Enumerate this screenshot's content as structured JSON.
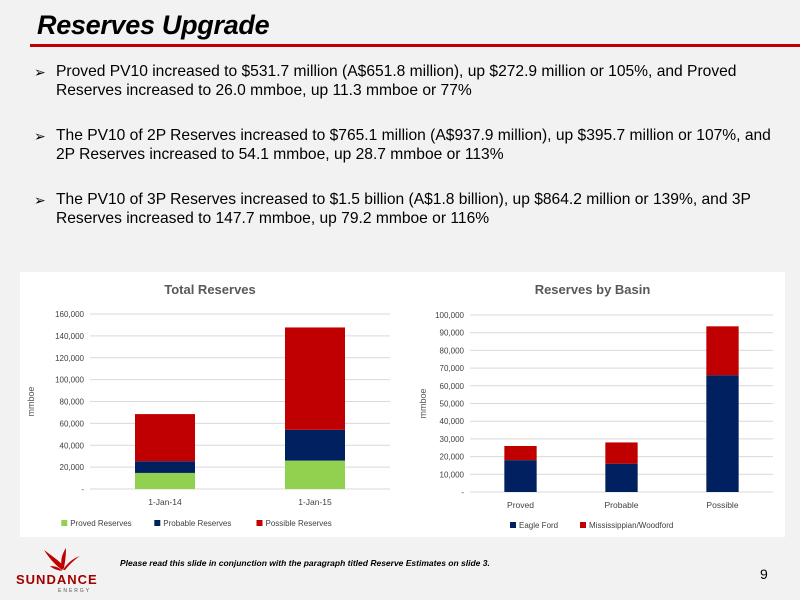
{
  "slide": {
    "title": "Reserves Upgrade",
    "bullet_marker": "➢",
    "bullets": [
      "Proved PV10 increased to $531.7 million (A$651.8 million), up $272.9 million or 105%, and Proved Reserves increased to 26.0 mmboe, up 11.3 mmboe or 77%",
      "The PV10 of 2P Reserves increased to $765.1 million (A$937.9 million), up $395.7 million or 107%, and 2P Reserves increased to 54.1 mmboe, up 28.7 mmboe or 113%",
      "The PV10 of 3P Reserves increased to $1.5 billion (A$1.8 billion), up $864.2 million or 139%, and 3P Reserves increased to 147.7 mmboe, up 79.2 mmboe or 116%"
    ],
    "footnote": "Please read this slide in conjunction with the paragraph titled Reserve Estimates on slide 3.",
    "page_number": "9",
    "logo": {
      "name": "SUNDANCE",
      "sub": "ENERGY"
    }
  },
  "chart_data": [
    {
      "type": "bar",
      "stacked": true,
      "title": "Total Reserves",
      "ylabel": "mmboe",
      "xlabel": "",
      "categories": [
        "1-Jan-14",
        "1-Jan-15"
      ],
      "ylim": [
        0,
        160000
      ],
      "yticks": [
        0,
        20000,
        40000,
        60000,
        80000,
        100000,
        120000,
        140000,
        160000
      ],
      "ytick_labels": [
        "-",
        "20,000",
        "40,000",
        "60,000",
        "80,000",
        "100,000",
        "120,000",
        "140,000",
        "160,000"
      ],
      "grid": true,
      "legend": "bottom",
      "series": [
        {
          "name": "Proved Reserves",
          "color": "#92d050",
          "values": [
            14700,
            26000
          ]
        },
        {
          "name": "Probable Reserves",
          "color": "#002060",
          "values": [
            10700,
            28100
          ]
        },
        {
          "name": "Possible Reserves",
          "color": "#c00000",
          "values": [
            43100,
            93600
          ]
        }
      ]
    },
    {
      "type": "bar",
      "stacked": true,
      "title": "Reserves by Basin",
      "ylabel": "mmboe",
      "xlabel": "",
      "categories": [
        "Proved",
        "Probable",
        "Possible"
      ],
      "ylim": [
        0,
        100000
      ],
      "yticks": [
        0,
        10000,
        20000,
        30000,
        40000,
        50000,
        60000,
        70000,
        80000,
        90000,
        100000
      ],
      "ytick_labels": [
        "-",
        "10,000",
        "20,000",
        "30,000",
        "40,000",
        "50,000",
        "60,000",
        "70,000",
        "80,000",
        "90,000",
        "100,000"
      ],
      "grid": true,
      "legend": "bottom",
      "series": [
        {
          "name": "Eagle Ford",
          "color": "#002060",
          "values": [
            18000,
            16000,
            66000
          ]
        },
        {
          "name": "Mississippian/Woodford",
          "color": "#c00000",
          "values": [
            8000,
            12000,
            27600
          ]
        }
      ]
    }
  ]
}
